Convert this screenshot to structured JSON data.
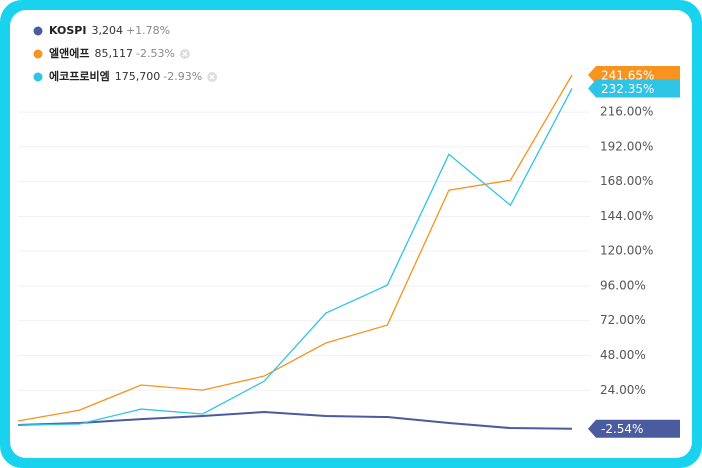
{
  "chart_data": {
    "type": "line",
    "categories": [
      null,
      null,
      null,
      null,
      null,
      null,
      null,
      null,
      null,
      null
    ],
    "series": [
      {
        "name": "KOSPI",
        "price": "3,204",
        "change": "+1.78%",
        "color": "#4a5ba0",
        "values": [
          0,
          1.4,
          4.1,
          6.2,
          9.0,
          6.2,
          5.5,
          1.4,
          -2.1,
          -2.54
        ],
        "last_label": "-2.54%"
      },
      {
        "name": "엘앤에프",
        "price": "85,117",
        "change": "-2.53%",
        "color": "#f7931e",
        "values": [
          2.8,
          10.3,
          27.6,
          24.1,
          33.8,
          56.6,
          69.0,
          162.1,
          169.0,
          241.65
        ],
        "last_label": "241.65%"
      },
      {
        "name": "에코프로비엠",
        "price": "175,700",
        "change": "-2.93%",
        "color": "#2ec4e6",
        "values": [
          0,
          0.7,
          11.0,
          7.6,
          30.3,
          77.2,
          96.6,
          186.9,
          151.7,
          232.35
        ],
        "last_label": "232.35%"
      }
    ],
    "ylim": [
      -10,
      252
    ],
    "yticks": [
      {
        "value": 24,
        "label": "24.00%"
      },
      {
        "value": 48,
        "label": "48.00%"
      },
      {
        "value": 72,
        "label": "72.00%"
      },
      {
        "value": 96,
        "label": "96.00%"
      },
      {
        "value": 120,
        "label": "120.00%"
      },
      {
        "value": 144,
        "label": "144.00%"
      },
      {
        "value": 168,
        "label": "168.00%"
      },
      {
        "value": 192,
        "label": "192.00%"
      },
      {
        "value": 216,
        "label": "216.00%"
      }
    ],
    "grid": true
  }
}
